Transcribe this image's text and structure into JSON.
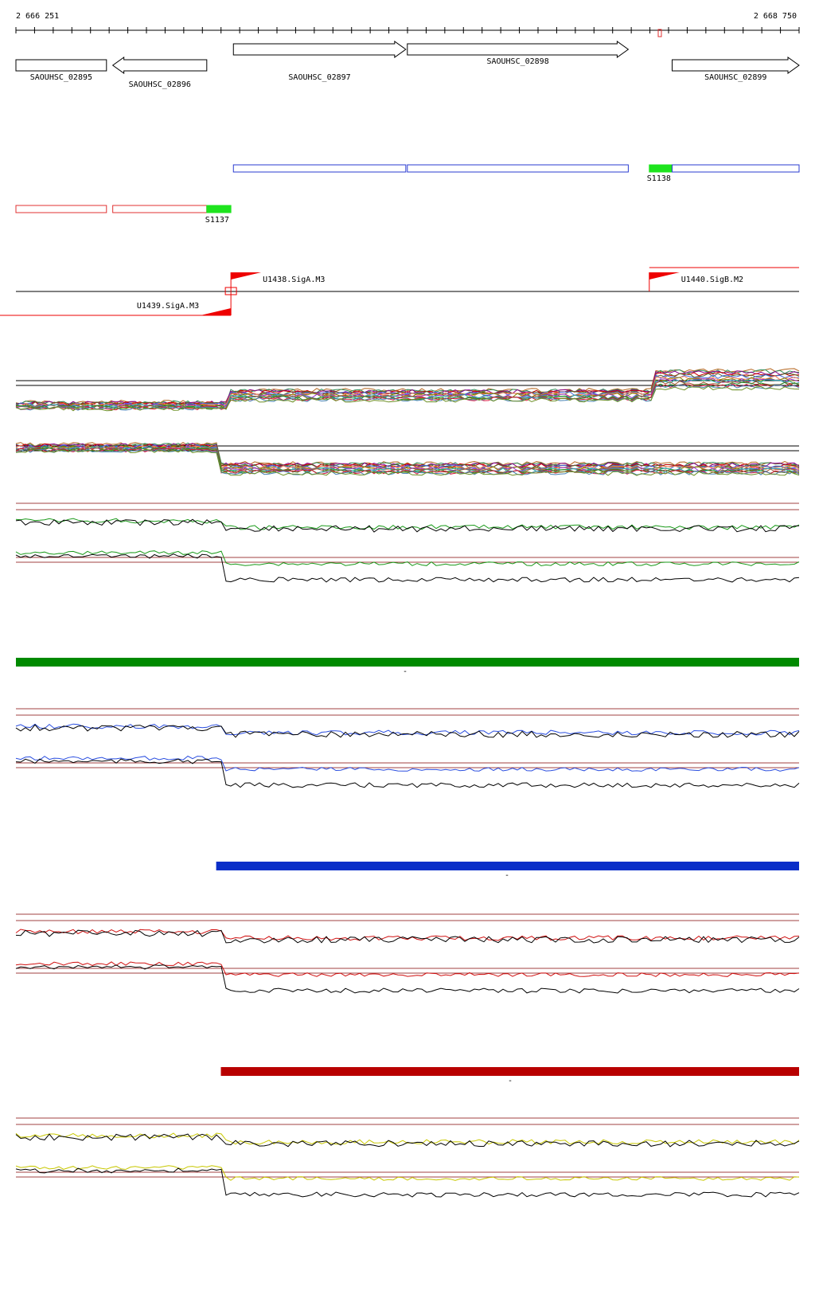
{
  "coords": {
    "start": "2 666 251",
    "end": "2 668 750",
    "start_bp": 2666251,
    "end_bp": 2668750
  },
  "genes": [
    {
      "id": "SAOUHSC_02895",
      "from": 2666251,
      "to": 2666540,
      "strand": "-",
      "row": 0
    },
    {
      "id": "SAOUHSC_02896",
      "from": 2666560,
      "to": 2666860,
      "strand": "-",
      "row": 0
    },
    {
      "id": "SAOUHSC_02897",
      "from": 2666945,
      "to": 2667495,
      "strand": "+",
      "row": 1
    },
    {
      "id": "SAOUHSC_02898",
      "from": 2667500,
      "to": 2668205,
      "strand": "+",
      "row": 1
    },
    {
      "id": "SAOUHSC_02899",
      "from": 2668345,
      "to": 2668750,
      "strand": "+",
      "row": 0
    }
  ],
  "segments_plus": [
    {
      "from": 2666945,
      "to": 2667495,
      "color": "#2a3bd1"
    },
    {
      "from": 2667500,
      "to": 2668205,
      "color": "#2a3bd1"
    },
    {
      "from": 2668272,
      "to": 2668345,
      "color": "#1ee41e",
      "filled": true,
      "label": "S1138"
    },
    {
      "from": 2668345,
      "to": 2668750,
      "color": "#2a3bd1"
    }
  ],
  "segments_minus": [
    {
      "from": 2666251,
      "to": 2666540,
      "color": "#e03030"
    },
    {
      "from": 2666560,
      "to": 2666860,
      "color": "#e03030"
    },
    {
      "from": 2666860,
      "to": 2666937,
      "color": "#1ee41e",
      "filled": true,
      "label": "S1137"
    }
  ],
  "promoters": [
    {
      "id": "U1438.SigA.M3",
      "pos": 2666937,
      "strand": "+"
    },
    {
      "id": "U1439.SigA.M3",
      "pos": 2666937,
      "strand": "-"
    },
    {
      "id": "U1440.SigB.M2",
      "pos": 2668272,
      "strand": "+"
    }
  ],
  "condition_bars": [
    {
      "name": "green",
      "color": "#008a00",
      "from": 2666251,
      "to": 2668750,
      "mark": "-"
    },
    {
      "name": "blue",
      "color": "#0a2ec8",
      "from": 2666890,
      "to": 2668750,
      "mark": "-"
    },
    {
      "name": "red",
      "color": "#b80000",
      "from": 2666905,
      "to": 2668750,
      "mark": "-"
    }
  ],
  "tiling_groups": [
    {
      "colors": [
        "#1a9a1a",
        "#000000"
      ]
    },
    {
      "colors": [
        "#2a4ee0",
        "#000000"
      ]
    },
    {
      "colors": [
        "#d01010",
        "#000000"
      ]
    },
    {
      "colors": [
        "#c8c800",
        "#000000"
      ]
    }
  ]
}
